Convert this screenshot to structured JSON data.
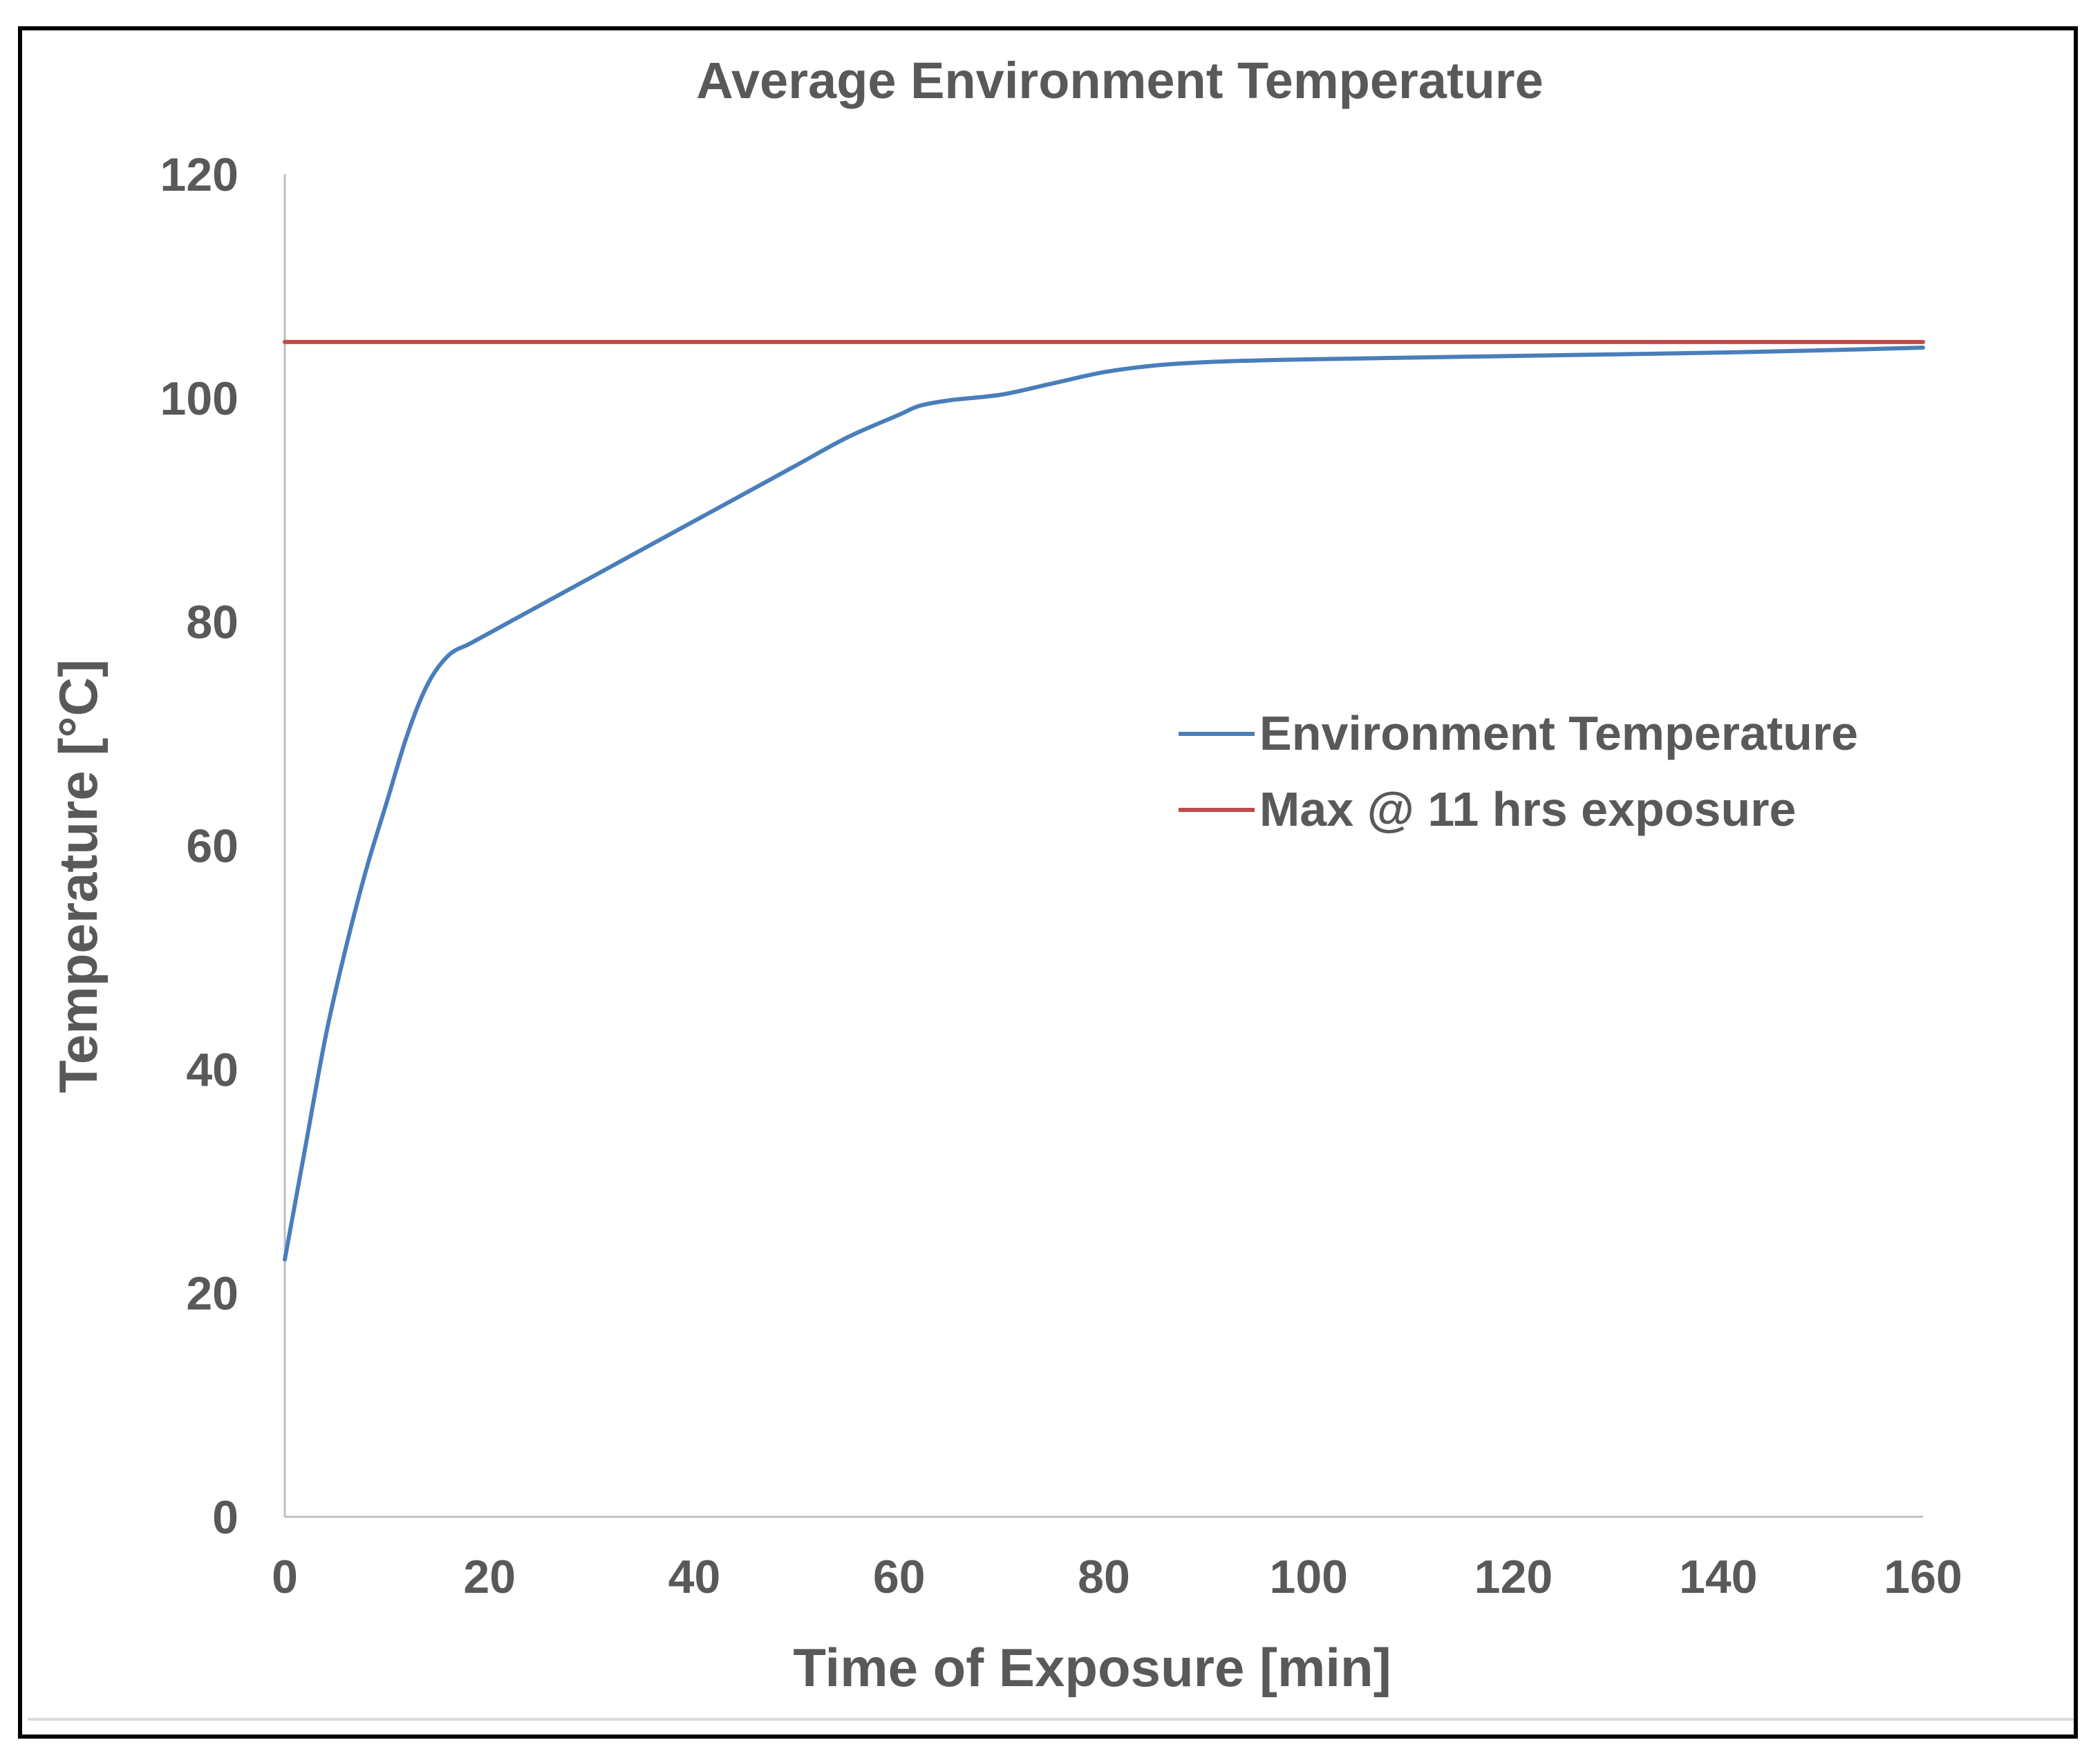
{
  "chart_data": {
    "type": "line",
    "title": "Average Environment Temperature",
    "xlabel": "Time of Exposure [min]",
    "ylabel": "Temperature [°C]",
    "xlim": [
      0,
      160
    ],
    "ylim": [
      0,
      120
    ],
    "xticks": [
      0,
      20,
      40,
      60,
      80,
      100,
      120,
      140,
      160
    ],
    "yticks": [
      0,
      20,
      40,
      60,
      80,
      100,
      120
    ],
    "xtick_labels": [
      "0",
      "20",
      "40",
      "60",
      "80",
      "100",
      "120",
      "140",
      "160"
    ],
    "ytick_labels": [
      "0",
      "20",
      "40",
      "60",
      "80",
      "100",
      "120"
    ],
    "grid": false,
    "legend_position": "right-middle",
    "series": [
      {
        "name": "Environment Temperature",
        "color": "#4a7ebb",
        "x": [
          0,
          2,
          4,
          6,
          8,
          10,
          12,
          14,
          16,
          18,
          20,
          25,
          30,
          35,
          40,
          45,
          50,
          55,
          60,
          62,
          65,
          70,
          75,
          80,
          85,
          90,
          95,
          100,
          110,
          120,
          130,
          140,
          150,
          160
        ],
        "y": [
          23,
          33,
          43,
          51,
          58,
          64,
          70,
          74.5,
          77,
          78,
          79,
          81.5,
          84,
          86.5,
          89,
          91.5,
          94,
          96.5,
          98.5,
          99.3,
          99.8,
          100.3,
          101.3,
          102.3,
          102.9,
          103.2,
          103.35,
          103.45,
          103.6,
          103.75,
          103.9,
          104.05,
          104.25,
          104.5
        ]
      },
      {
        "name": "Max @ 11 hrs exposure",
        "color": "#be4b48",
        "x": [
          0,
          160
        ],
        "y": [
          105,
          105
        ]
      }
    ]
  }
}
